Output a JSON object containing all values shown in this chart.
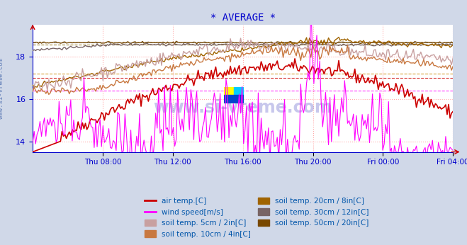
{
  "title": "* AVERAGE *",
  "title_color": "#0000cc",
  "background_color": "#d0d8e8",
  "plot_bg_color": "#ffffff",
  "grid_color": "#ffaaaa",
  "axis_color": "#0000cc",
  "tick_color": "#0000cc",
  "watermark": "www.si-vreme.com",
  "watermark_color": "#0000aa",
  "ylim": [
    13.5,
    19.5
  ],
  "yticks": [
    14,
    16,
    18
  ],
  "n_points": 288,
  "x_tick_labels": [
    "Thu 08:00",
    "Thu 12:00",
    "Thu 16:00",
    "Thu 20:00",
    "Fri 00:00",
    "Fri 04:00"
  ],
  "series_colors": {
    "air_temp": "#cc0000",
    "wind_speed": "#ff00ff",
    "soil_5cm": "#c8a0a0",
    "soil_10cm": "#c87840",
    "soil_20cm": "#a06400",
    "soil_30cm": "#786464",
    "soil_50cm": "#784800"
  },
  "legend_labels": [
    "air temp.[C]",
    "wind speed[m/s]",
    "soil temp. 5cm / 2in[C]",
    "soil temp. 10cm / 4in[C]",
    "soil temp. 20cm / 8in[C]",
    "soil temp. 30cm / 12in[C]",
    "soil temp. 50cm / 20in[C]"
  ],
  "ylabel_left": "www.si-vreme.com"
}
